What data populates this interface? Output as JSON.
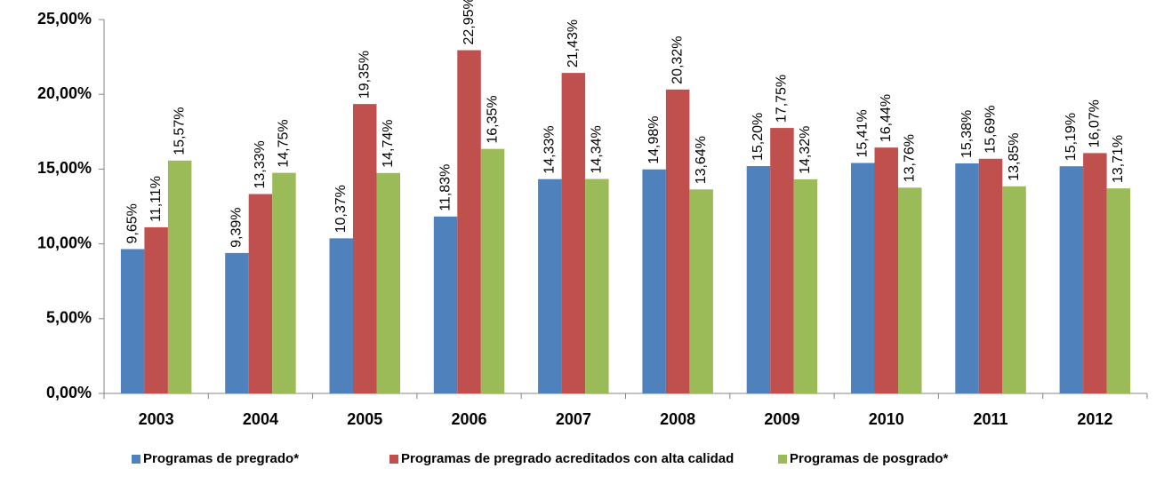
{
  "chart_data": {
    "type": "bar",
    "categories": [
      "2003",
      "2004",
      "2005",
      "2006",
      "2007",
      "2008",
      "2009",
      "2010",
      "2011",
      "2012"
    ],
    "series": [
      {
        "name": "Programas de pregrado*",
        "color": "#4f81bd",
        "values": [
          9.65,
          9.39,
          10.37,
          11.83,
          14.33,
          14.98,
          15.2,
          15.41,
          15.38,
          15.19
        ],
        "value_labels": [
          "9,65%",
          "9,39%",
          "10,37%",
          "11,83%",
          "14,33%",
          "14,98%",
          "15,20%",
          "15,41%",
          "15,38%",
          "15,19%"
        ]
      },
      {
        "name": "Programas de pregrado acreditados con alta calidad",
        "color": "#c0504d",
        "values": [
          11.11,
          13.33,
          19.35,
          22.95,
          21.43,
          20.32,
          17.75,
          16.44,
          15.69,
          16.07
        ],
        "value_labels": [
          "11,11%",
          "13,33%",
          "19,35%",
          "22,95%",
          "21,43%",
          "20,32%",
          "17,75%",
          "16,44%",
          "15,69%",
          "16,07%"
        ]
      },
      {
        "name": "Programas de posgrado*",
        "color": "#9bbb59",
        "values": [
          15.57,
          14.75,
          14.74,
          16.35,
          14.34,
          13.64,
          14.32,
          13.76,
          13.85,
          13.71
        ],
        "value_labels": [
          "15,57%",
          "14,75%",
          "14,74%",
          "16,35%",
          "14,34%",
          "13,64%",
          "14,32%",
          "13,76%",
          "13,85%",
          "13,71%"
        ]
      }
    ],
    "ylim": [
      0,
      25
    ],
    "yticks": [
      {
        "value": 0,
        "label": "0,00%"
      },
      {
        "value": 5,
        "label": "5,00%"
      },
      {
        "value": 10,
        "label": "10,00%"
      },
      {
        "value": 15,
        "label": "15,00%"
      },
      {
        "value": 20,
        "label": "20,00%"
      },
      {
        "value": 25,
        "label": "25,00%"
      }
    ],
    "grid": false,
    "legend": "bottom"
  }
}
